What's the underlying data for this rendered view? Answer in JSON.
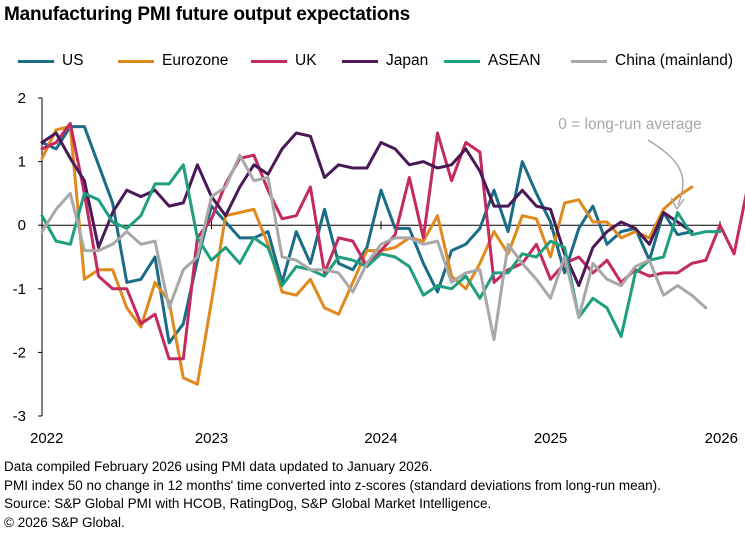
{
  "title": "Manufacturing PMI future output expectations",
  "annotation": "0 = long-run average",
  "footnotes": [
    "Data compiled February 2026 using PMI data updated to January 2026.",
    "PMI index 50 no change in 12 months' time converted into z-scores (standard deviations from long-run mean).",
    "Source: S&P Global PMI with HCOB, RatingDog, S&P Global Market Intelligence.",
    "© 2026 S&P Global."
  ],
  "chart_data": {
    "type": "line",
    "title": "Manufacturing PMI future output expectations",
    "xlabel": "",
    "ylabel": "",
    "ylim": [
      -3,
      2
    ],
    "yticks": [
      2,
      1,
      0,
      -1,
      -2,
      -3
    ],
    "xtick_labels": [
      "2022",
      "2023",
      "2024",
      "2025",
      "2026"
    ],
    "x_start": "2022-01",
    "x_frequency": "monthly",
    "legend_position": "top",
    "grid": false,
    "series": [
      {
        "name": "US",
        "color": "#1a6c87",
        "values": [
          1.3,
          1.2,
          1.55,
          1.55,
          0.95,
          0.35,
          -0.9,
          -0.85,
          -0.5,
          -1.85,
          -1.55,
          -0.55,
          0.3,
          0.05,
          -0.2,
          -0.2,
          -0.1,
          -0.9,
          -0.1,
          -0.6,
          0.25,
          -0.6,
          -0.7,
          -0.35,
          0.55,
          -0.05,
          -0.05,
          -0.6,
          -1.05,
          -0.4,
          -0.3,
          -0.05,
          0.55,
          -0.1,
          1.0,
          0.5,
          0.05,
          -0.75,
          -0.05,
          0.3,
          -0.3,
          -0.1,
          -0.05,
          -0.55,
          0.2,
          -0.15,
          -0.1
        ]
      },
      {
        "name": "Eurozone",
        "color": "#e08a1e",
        "values": [
          1.05,
          1.5,
          1.55,
          -0.85,
          -0.7,
          -0.7,
          -1.3,
          -1.6,
          -0.9,
          -1.2,
          -2.4,
          -2.5,
          -1.2,
          0.15,
          0.2,
          0.25,
          -0.3,
          -1.05,
          -1.1,
          -0.85,
          -1.3,
          -1.4,
          -0.9,
          -0.4,
          -0.4,
          -0.35,
          -0.2,
          -0.25,
          0.15,
          -0.8,
          -1.0,
          -0.6,
          -0.1,
          -0.45,
          0.15,
          0.1,
          -0.5,
          0.35,
          0.4,
          0.05,
          0.05,
          -0.2,
          -0.1,
          -0.2,
          0.25,
          0.45,
          0.6
        ]
      },
      {
        "name": "UK",
        "color": "#c4295f",
        "values": [
          1.2,
          1.3,
          1.6,
          0.5,
          -0.8,
          -1.0,
          -1.0,
          -1.55,
          -1.4,
          -2.1,
          -2.1,
          -0.2,
          0.1,
          0.65,
          1.05,
          1.1,
          0.55,
          0.1,
          0.15,
          0.6,
          -0.75,
          -0.2,
          -0.25,
          -0.65,
          -0.4,
          -0.15,
          0.75,
          -0.2,
          1.45,
          0.7,
          1.3,
          1.15,
          -0.9,
          -0.7,
          -0.6,
          -0.3,
          -0.85,
          -0.6,
          -0.5,
          -0.75,
          -0.55,
          -0.9,
          -0.7,
          -0.8,
          -0.75,
          -0.75,
          -0.6,
          -0.55,
          0.0,
          -0.45,
          0.65
        ]
      },
      {
        "name": "Japan",
        "color": "#4a1a57",
        "values": [
          1.3,
          1.45,
          1.05,
          0.7,
          -0.35,
          0.2,
          0.55,
          0.45,
          0.55,
          0.3,
          0.35,
          0.95,
          0.45,
          0.15,
          0.6,
          0.95,
          0.8,
          1.2,
          1.45,
          1.4,
          0.75,
          0.95,
          0.9,
          0.9,
          1.3,
          1.2,
          0.95,
          1.0,
          0.9,
          0.95,
          1.2,
          0.85,
          0.3,
          0.3,
          0.55,
          0.3,
          0.25,
          -0.45,
          -0.95,
          -0.35,
          -0.1,
          0.05,
          -0.05,
          -0.3,
          0.2,
          0.05,
          -0.1
        ]
      },
      {
        "name": "ASEAN",
        "color": "#1f9e80",
        "values": [
          0.15,
          -0.25,
          -0.3,
          0.5,
          0.4,
          0.05,
          -0.05,
          0.15,
          0.65,
          0.65,
          0.95,
          -0.2,
          -0.55,
          -0.35,
          -0.6,
          -0.2,
          -0.35,
          -0.95,
          -0.65,
          -0.7,
          -0.8,
          -0.5,
          -0.55,
          -0.65,
          -0.45,
          -0.5,
          -0.65,
          -1.1,
          -0.95,
          -1.0,
          -0.8,
          -1.15,
          -0.75,
          -0.75,
          -0.45,
          -0.5,
          -0.25,
          -0.35,
          -1.45,
          -1.15,
          -1.3,
          -1.75,
          -0.75,
          -0.55,
          -0.5,
          0.2,
          -0.15,
          -0.1,
          -0.1
        ]
      },
      {
        "name": "China (mainland)",
        "color": "#a8a8a8",
        "values": [
          -0.1,
          0.25,
          0.5,
          -0.4,
          -0.4,
          -0.3,
          -0.1,
          -0.3,
          -0.25,
          -1.3,
          -0.7,
          -0.5,
          0.45,
          0.6,
          1.1,
          0.7,
          0.75,
          -0.5,
          -0.55,
          -0.7,
          -0.7,
          -0.75,
          -1.05,
          -0.6,
          -0.3,
          -0.2,
          -0.2,
          -0.3,
          -0.25,
          -0.9,
          -0.75,
          -0.7,
          -1.8,
          -0.3,
          -0.6,
          -0.85,
          -1.15,
          -0.5,
          -1.45,
          -0.6,
          -0.85,
          -0.95,
          -0.65,
          -0.55,
          -1.1,
          -0.95,
          -1.1,
          -1.3
        ]
      }
    ]
  }
}
